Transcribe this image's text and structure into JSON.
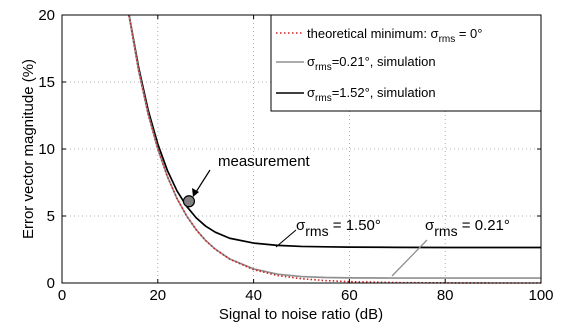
{
  "chart_data": {
    "type": "line",
    "xlabel": "Signal to noise ratio (dB)",
    "ylabel": "Error vector magnitude (%)",
    "xlim": [
      0,
      100
    ],
    "ylim": [
      0,
      20
    ],
    "grid": true,
    "legend_placement": "top-right",
    "xticks": [
      "0",
      "20",
      "40",
      "60",
      "80",
      "100"
    ],
    "yticks": [
      "0",
      "5",
      "10",
      "15",
      "20"
    ],
    "series": [
      {
        "name": "theoretical minimum: σrms = 0°",
        "color": "#cc2222",
        "style": "dotted",
        "x": [
          14,
          16,
          18,
          20,
          22,
          24,
          26,
          28,
          30,
          32,
          35,
          40,
          45,
          50,
          55,
          60,
          70,
          80,
          90,
          100
        ],
        "y": [
          19.95,
          15.85,
          12.59,
          10.0,
          7.94,
          6.31,
          5.01,
          3.98,
          3.16,
          2.51,
          1.78,
          1.0,
          0.56,
          0.32,
          0.18,
          0.1,
          0.03,
          0.01,
          0.0,
          0.0
        ]
      },
      {
        "name": "σrms=0.21°, simulation",
        "color": "#909090",
        "style": "solid",
        "x": [
          14,
          16,
          18,
          20,
          22,
          24,
          26,
          28,
          30,
          32,
          35,
          40,
          45,
          50,
          55,
          60,
          70,
          80,
          90,
          100
        ],
        "y": [
          19.95,
          15.85,
          12.59,
          10.0,
          7.95,
          6.31,
          5.02,
          3.99,
          3.17,
          2.53,
          1.8,
          1.05,
          0.66,
          0.48,
          0.41,
          0.38,
          0.37,
          0.37,
          0.37,
          0.37
        ]
      },
      {
        "name": "σrms=1.52°, simulation",
        "color": "#000000",
        "style": "solid",
        "x": [
          14,
          16,
          18,
          20,
          22,
          24,
          26,
          28,
          30,
          32,
          35,
          40,
          45,
          50,
          55,
          60,
          70,
          80,
          90,
          100
        ],
        "y": [
          20.13,
          16.08,
          12.88,
          10.37,
          8.4,
          6.88,
          5.73,
          4.87,
          4.24,
          3.79,
          3.34,
          2.98,
          2.81,
          2.73,
          2.7,
          2.68,
          2.66,
          2.65,
          2.65,
          2.65
        ]
      }
    ],
    "legend": [
      {
        "pre": "theoretical minimum: σ",
        "sub": "rms",
        "post": " = 0°"
      },
      {
        "pre": "σ",
        "sub": "rms",
        "post": "=0.21°, simulation"
      },
      {
        "pre": "σ",
        "sub": "rms",
        "post": "=1.52°, simulation"
      }
    ],
    "annotations": {
      "measurement": {
        "label": "measurement",
        "x": 26.5,
        "y": 6.1
      },
      "sigma_150": {
        "pre": "σ",
        "sub": "rms",
        "post": " = 1.50°"
      },
      "sigma_021": {
        "pre": "σ",
        "sub": "rms",
        "post": " = 0.21°"
      }
    }
  }
}
